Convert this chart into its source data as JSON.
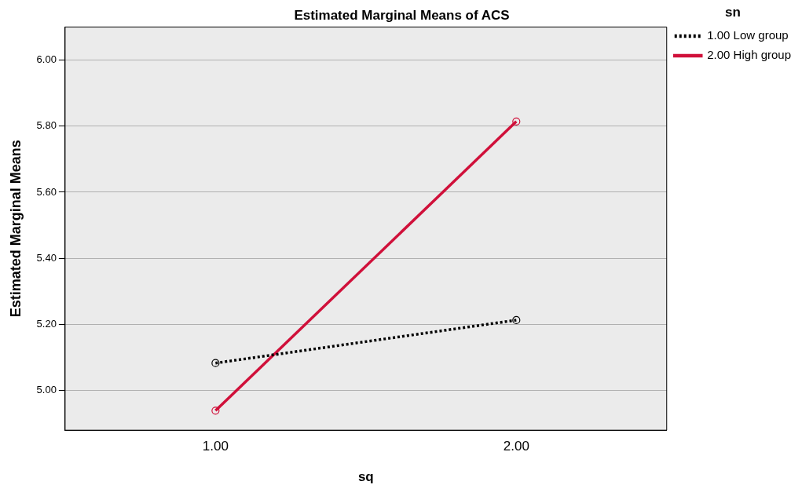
{
  "chart_data": {
    "type": "line",
    "title": "Estimated Marginal Means of ACS",
    "xlabel": "sq",
    "ylabel": "Estimated Marginal Means",
    "legend_title": "sn",
    "categories": [
      "1.00",
      "2.00"
    ],
    "series": [
      {
        "name": "1.00 Low group",
        "color": "#000000",
        "line_style": "dotted",
        "values": [
          5.083,
          5.213
        ]
      },
      {
        "name": "2.00 High group",
        "color": "#d0103a",
        "line_style": "solid",
        "values": [
          4.939,
          5.814
        ]
      }
    ],
    "ylim": [
      4.88,
      6.1
    ],
    "yticks": [
      {
        "value": 5,
        "label": "5.00"
      },
      {
        "value": 5.2,
        "label": "5.20"
      },
      {
        "value": 5.4,
        "label": "5.40"
      },
      {
        "value": 5.6,
        "label": "5.60"
      },
      {
        "value": 5.8,
        "label": "5.80"
      },
      {
        "value": 6,
        "label": "6.00"
      }
    ],
    "grid": "y",
    "legend": "top right",
    "marker": "circle"
  }
}
